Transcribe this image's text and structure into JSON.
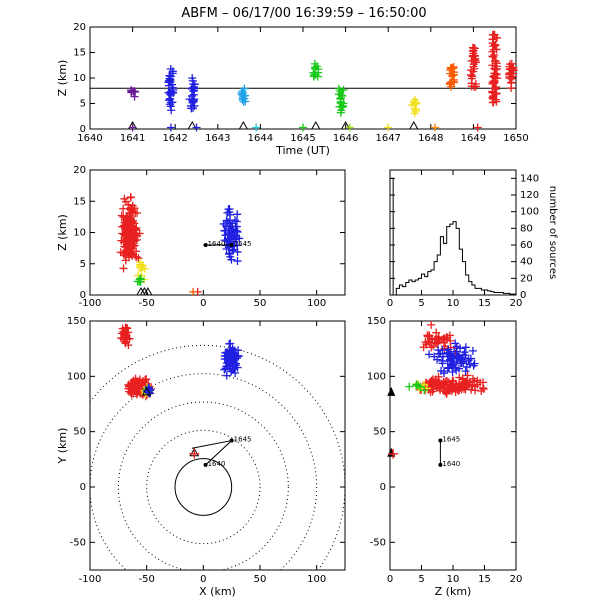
{
  "title": "ABFM – 06/17/00 16:39:59 – 16:50:00",
  "colors": {
    "purple": "#6a1b9a",
    "blue": "#2020e0",
    "lightblue": "#1fa0e6",
    "cyan": "#1ec8d2",
    "green": "#18c818",
    "lime": "#9be01a",
    "yellow": "#f0e020",
    "orange": "#ff8a00",
    "darkorange": "#ff5a00",
    "red": "#e82020"
  },
  "chart_data": [
    {
      "id": "time-height",
      "type": "scatter",
      "xlabel": "Time (UT)",
      "ylabel": "Z (km)",
      "xlim": [
        1640,
        1650
      ],
      "ylim": [
        0,
        20
      ],
      "xticks": [
        1640,
        1641,
        1642,
        1643,
        1644,
        1645,
        1646,
        1647,
        1648,
        1649,
        1650
      ],
      "yticks": [
        0,
        5,
        10,
        15,
        20
      ],
      "reference_line_z": 8,
      "source_clusters": [
        {
          "t": 1641.0,
          "z": [
            6,
            8
          ],
          "color": "purple"
        },
        {
          "t": 1641.9,
          "z": [
            3.5,
            12
          ],
          "color": "blue"
        },
        {
          "t": 1642.4,
          "z": [
            4,
            10
          ],
          "color": "blue"
        },
        {
          "t": 1643.6,
          "z": [
            5,
            8
          ],
          "color": "lightblue"
        },
        {
          "t": 1645.3,
          "z": [
            10,
            13
          ],
          "color": "green"
        },
        {
          "t": 1645.9,
          "z": [
            3,
            8
          ],
          "color": "green"
        },
        {
          "t": 1647.6,
          "z": [
            3,
            6
          ],
          "color": "yellow"
        },
        {
          "t": 1648.5,
          "z": [
            8,
            13
          ],
          "color": "darkorange"
        },
        {
          "t": 1649.0,
          "z": [
            8,
            16
          ],
          "color": "red"
        },
        {
          "t": 1649.5,
          "z": [
            5,
            19
          ],
          "color": "red"
        },
        {
          "t": 1649.9,
          "z": [
            8,
            13
          ],
          "color": "red"
        }
      ],
      "ground_markers": [
        1641.0,
        1642.4,
        1643.6,
        1645.3,
        1646.0,
        1647.6
      ],
      "ground_crosses": [
        {
          "t": 1641.0,
          "color": "purple"
        },
        {
          "t": 1641.9,
          "color": "blue"
        },
        {
          "t": 1642.5,
          "color": "blue"
        },
        {
          "t": 1643.9,
          "color": "cyan"
        },
        {
          "t": 1645.0,
          "color": "green"
        },
        {
          "t": 1646.1,
          "color": "lime"
        },
        {
          "t": 1647.0,
          "color": "yellow"
        },
        {
          "t": 1648.1,
          "color": "orange"
        },
        {
          "t": 1649.1,
          "color": "red"
        }
      ]
    },
    {
      "id": "x-z",
      "type": "scatter",
      "ylabel": "Z (km)",
      "xlim": [
        -100,
        125
      ],
      "ylim": [
        0,
        20
      ],
      "xticks": [
        -100,
        -50,
        0,
        50,
        100
      ],
      "yticks": [
        0,
        5,
        10,
        15,
        20
      ],
      "clusters": [
        {
          "x": [
            -75,
            -55
          ],
          "z": [
            3,
            17
          ],
          "color": "red",
          "n": 150
        },
        {
          "x": [
            -60,
            -50
          ],
          "z": [
            2,
            6
          ],
          "color": "yellow",
          "n": 12
        },
        {
          "x": [
            -60,
            -52
          ],
          "z": [
            1,
            4
          ],
          "color": "green",
          "n": 6
        },
        {
          "x": [
            15,
            35
          ],
          "z": [
            4,
            15
          ],
          "color": "blue",
          "n": 70
        }
      ],
      "flash_path": {
        "x": [
          0,
          25
        ],
        "z": [
          8,
          8
        ]
      },
      "labels": [
        {
          "text": "1640",
          "x": 2,
          "z": 8
        },
        {
          "text": "1645",
          "x": 25,
          "z": 8
        }
      ],
      "ground_markers": [
        -55,
        -52,
        -49
      ]
    },
    {
      "id": "z-histogram",
      "type": "bar",
      "ylabel": "number of sources",
      "xlim": [
        0,
        20
      ],
      "ylim": [
        0,
        150
      ],
      "xticks": [
        0,
        5,
        10,
        15,
        20
      ],
      "yticks": [
        0,
        20,
        40,
        60,
        80,
        100,
        120,
        140
      ],
      "bin_edges": [
        0,
        0.5,
        1,
        1.5,
        2,
        2.5,
        3,
        3.5,
        4,
        4.5,
        5,
        5.5,
        6,
        6.5,
        7,
        7.5,
        8,
        8.5,
        9,
        9.5,
        10,
        10.5,
        11,
        11.5,
        12,
        12.5,
        13,
        13.5,
        14,
        14.5,
        15,
        15.5,
        16,
        16.5,
        17,
        17.5,
        18,
        18.5,
        19,
        19.5,
        20
      ],
      "counts": [
        140,
        0,
        8,
        12,
        10,
        15,
        18,
        16,
        18,
        20,
        25,
        22,
        28,
        30,
        40,
        48,
        70,
        62,
        82,
        85,
        88,
        80,
        55,
        40,
        24,
        16,
        12,
        8,
        8,
        6,
        6,
        5,
        4,
        3,
        3,
        3,
        2,
        2,
        1,
        1
      ]
    },
    {
      "id": "plan-view",
      "type": "scatter",
      "xlabel": "X (km)",
      "ylabel": "Y (km)",
      "xlim": [
        -100,
        125
      ],
      "ylim": [
        -75,
        150
      ],
      "xticks": [
        -100,
        -50,
        0,
        50,
        100
      ],
      "yticks": [
        -50,
        0,
        50,
        100,
        150
      ],
      "range_rings_km": [
        25,
        50,
        75,
        100,
        125
      ],
      "clusters": [
        {
          "x": [
            -75,
            -62
          ],
          "y": [
            125,
            148
          ],
          "color": "red",
          "n": 30
        },
        {
          "x": [
            -72,
            -42
          ],
          "y": [
            78,
            100
          ],
          "color": "red",
          "n": 120
        },
        {
          "x": [
            -55,
            -45
          ],
          "y": [
            82,
            92
          ],
          "color": "yellow",
          "n": 12
        },
        {
          "x": [
            -52,
            -46
          ],
          "y": [
            84,
            90
          ],
          "color": "green",
          "n": 6
        },
        {
          "x": [
            -52,
            -45
          ],
          "y": [
            82,
            92
          ],
          "color": "blue",
          "n": 10
        },
        {
          "x": [
            15,
            35
          ],
          "y": [
            95,
            135
          ],
          "color": "blue",
          "n": 70
        }
      ],
      "flash_path": {
        "x": [
          -10,
          25,
          2
        ],
        "y": [
          35,
          42,
          20
        ]
      },
      "labels": [
        {
          "text": "1645",
          "x": 25,
          "y": 42
        },
        {
          "text": "1640",
          "x": 2,
          "y": 20
        }
      ],
      "stations": [
        {
          "x": -50,
          "y": 85
        },
        {
          "x": -8,
          "y": 30
        }
      ]
    },
    {
      "id": "z-y",
      "type": "scatter",
      "xlabel": "Z (km)",
      "xlim": [
        0,
        20
      ],
      "ylim": [
        -75,
        150
      ],
      "xticks": [
        0,
        5,
        10,
        15,
        20
      ],
      "yticks": [
        -50,
        0,
        50,
        100,
        150
      ],
      "clusters": [
        {
          "z": [
            3,
            16
          ],
          "y": [
            82,
            102
          ],
          "color": "red",
          "n": 130
        },
        {
          "z": [
            4,
            12
          ],
          "y": [
            118,
            148
          ],
          "color": "red",
          "n": 40
        },
        {
          "z": [
            3,
            7
          ],
          "y": [
            86,
            96
          ],
          "color": "yellow",
          "n": 10
        },
        {
          "z": [
            2,
            6
          ],
          "y": [
            86,
            96
          ],
          "color": "green",
          "n": 6
        },
        {
          "z": [
            5,
            15
          ],
          "y": [
            95,
            135
          ],
          "color": "blue",
          "n": 70
        }
      ],
      "flash_path": {
        "z": [
          8,
          8
        ],
        "y": [
          20,
          42
        ]
      },
      "labels": [
        {
          "text": "1645",
          "z": 8,
          "y": 42
        },
        {
          "text": "1640",
          "z": 8,
          "y": 20
        }
      ],
      "stations_z0": [
        85,
        30
      ]
    }
  ]
}
